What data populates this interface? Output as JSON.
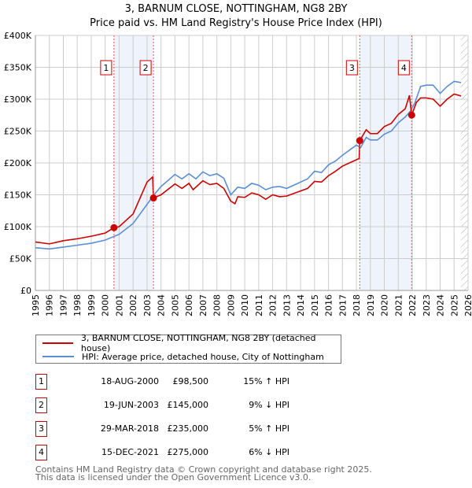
{
  "title": "3, BARNUM CLOSE, NOTTINGHAM, NG8 2BY",
  "subtitle": "Price paid vs. HM Land Registry's House Price Index (HPI)",
  "chart_data": {
    "type": "line",
    "ylim": [
      0,
      400000
    ],
    "xlim": [
      1995,
      2026
    ],
    "yticks": [
      {
        "v": 0,
        "label": "£0"
      },
      {
        "v": 50000,
        "label": "£50K"
      },
      {
        "v": 100000,
        "label": "£100K"
      },
      {
        "v": 150000,
        "label": "£150K"
      },
      {
        "v": 200000,
        "label": "£200K"
      },
      {
        "v": 250000,
        "label": "£250K"
      },
      {
        "v": 300000,
        "label": "£300K"
      },
      {
        "v": 350000,
        "label": "£350K"
      },
      {
        "v": 400000,
        "label": "£400K"
      }
    ],
    "xticks": [
      "1995",
      "1996",
      "1997",
      "1998",
      "1999",
      "2000",
      "2001",
      "2002",
      "2003",
      "2004",
      "2005",
      "2006",
      "2007",
      "2008",
      "2009",
      "2010",
      "2011",
      "2012",
      "2013",
      "2014",
      "2015",
      "2016",
      "2017",
      "2018",
      "2019",
      "2020",
      "2021",
      "2022",
      "2023",
      "2024",
      "2025",
      "2026"
    ],
    "series": [
      {
        "name": "3, BARNUM CLOSE, NOTTINGHAM, NG8 2BY (detached house)",
        "color": "#cc0000",
        "points": [
          [
            1995,
            76
          ],
          [
            1996,
            73
          ],
          [
            1997,
            78
          ],
          [
            1998,
            81
          ],
          [
            1999,
            85
          ],
          [
            2000,
            90
          ],
          [
            2000.63,
            98.5
          ],
          [
            2001,
            100
          ],
          [
            2002,
            120
          ],
          [
            2003,
            170
          ],
          [
            2003.4,
            178
          ],
          [
            2003.46,
            145
          ],
          [
            2004,
            150
          ],
          [
            2005,
            167
          ],
          [
            2005.5,
            160
          ],
          [
            2006,
            168
          ],
          [
            2006.3,
            158
          ],
          [
            2007,
            172
          ],
          [
            2007.5,
            166
          ],
          [
            2008,
            168
          ],
          [
            2008.5,
            160
          ],
          [
            2009,
            140
          ],
          [
            2009.3,
            136
          ],
          [
            2009.5,
            147
          ],
          [
            2010,
            146
          ],
          [
            2010.5,
            153
          ],
          [
            2011,
            150
          ],
          [
            2011.5,
            143
          ],
          [
            2012,
            150
          ],
          [
            2012.5,
            147
          ],
          [
            2013,
            148
          ],
          [
            2013.5,
            152
          ],
          [
            2014,
            156
          ],
          [
            2014.5,
            160
          ],
          [
            2015,
            171
          ],
          [
            2015.5,
            170
          ],
          [
            2016,
            180
          ],
          [
            2016.5,
            187
          ],
          [
            2017,
            195
          ],
          [
            2017.5,
            200
          ],
          [
            2018.2,
            207
          ],
          [
            2018.24,
            235
          ],
          [
            2018.7,
            252
          ],
          [
            2019,
            246
          ],
          [
            2019.5,
            246
          ],
          [
            2020,
            257
          ],
          [
            2020.5,
            262
          ],
          [
            2021,
            276
          ],
          [
            2021.5,
            285
          ],
          [
            2021.8,
            306
          ],
          [
            2021.96,
            275
          ],
          [
            2022.3,
            295
          ],
          [
            2022.6,
            302
          ],
          [
            2023,
            302
          ],
          [
            2023.5,
            300
          ],
          [
            2024,
            289
          ],
          [
            2024.5,
            300
          ],
          [
            2025,
            308
          ],
          [
            2025.5,
            305
          ]
        ]
      },
      {
        "name": "HPI: Average price, detached house, City of Nottingham",
        "color": "#5b8fd4",
        "points": [
          [
            1995,
            67
          ],
          [
            1996,
            65
          ],
          [
            1997,
            68
          ],
          [
            1998,
            71
          ],
          [
            1999,
            74
          ],
          [
            2000,
            79
          ],
          [
            2001,
            88
          ],
          [
            2002,
            105
          ],
          [
            2003,
            135
          ],
          [
            2003.5,
            150
          ],
          [
            2004,
            163
          ],
          [
            2005,
            182
          ],
          [
            2005.5,
            175
          ],
          [
            2006,
            183
          ],
          [
            2006.5,
            175
          ],
          [
            2007,
            186
          ],
          [
            2007.5,
            180
          ],
          [
            2008,
            183
          ],
          [
            2008.5,
            176
          ],
          [
            2009,
            150
          ],
          [
            2009.5,
            162
          ],
          [
            2010,
            160
          ],
          [
            2010.5,
            168
          ],
          [
            2011,
            165
          ],
          [
            2011.5,
            158
          ],
          [
            2012,
            162
          ],
          [
            2012.5,
            163
          ],
          [
            2013,
            160
          ],
          [
            2013.5,
            165
          ],
          [
            2014,
            170
          ],
          [
            2014.5,
            175
          ],
          [
            2015,
            187
          ],
          [
            2015.5,
            185
          ],
          [
            2016,
            197
          ],
          [
            2016.5,
            203
          ],
          [
            2017,
            212
          ],
          [
            2017.5,
            220
          ],
          [
            2018,
            228
          ],
          [
            2018.3,
            224
          ],
          [
            2018.7,
            240
          ],
          [
            2019,
            236
          ],
          [
            2019.5,
            236
          ],
          [
            2020,
            245
          ],
          [
            2020.5,
            250
          ],
          [
            2021,
            263
          ],
          [
            2021.5,
            272
          ],
          [
            2021.9,
            282
          ],
          [
            2022.2,
            295
          ],
          [
            2022.6,
            320
          ],
          [
            2023,
            322
          ],
          [
            2023.5,
            322
          ],
          [
            2024,
            309
          ],
          [
            2024.5,
            320
          ],
          [
            2025,
            328
          ],
          [
            2025.5,
            326
          ]
        ]
      }
    ],
    "sales": [
      {
        "n": "1",
        "x": 2000.63,
        "date": "18-AUG-2000",
        "price": "£98,500",
        "value": 98500,
        "hpi": "15% ↑ HPI"
      },
      {
        "n": "2",
        "x": 2003.46,
        "date": "19-JUN-2003",
        "price": "£145,000",
        "value": 145000,
        "hpi": "9% ↓ HPI"
      },
      {
        "n": "3",
        "x": 2018.24,
        "date": "29-MAR-2018",
        "price": "£235,000",
        "value": 235000,
        "hpi": "5% ↑ HPI"
      },
      {
        "n": "4",
        "x": 2021.96,
        "date": "15-DEC-2021",
        "price": "£275,000",
        "value": 275000,
        "hpi": "6% ↓ HPI"
      }
    ],
    "forecast_start": 2025.5
  },
  "footer": {
    "line1": "Contains HM Land Registry data © Crown copyright and database right 2025.",
    "line2": "This data is licensed under the Open Government Licence v3.0."
  }
}
